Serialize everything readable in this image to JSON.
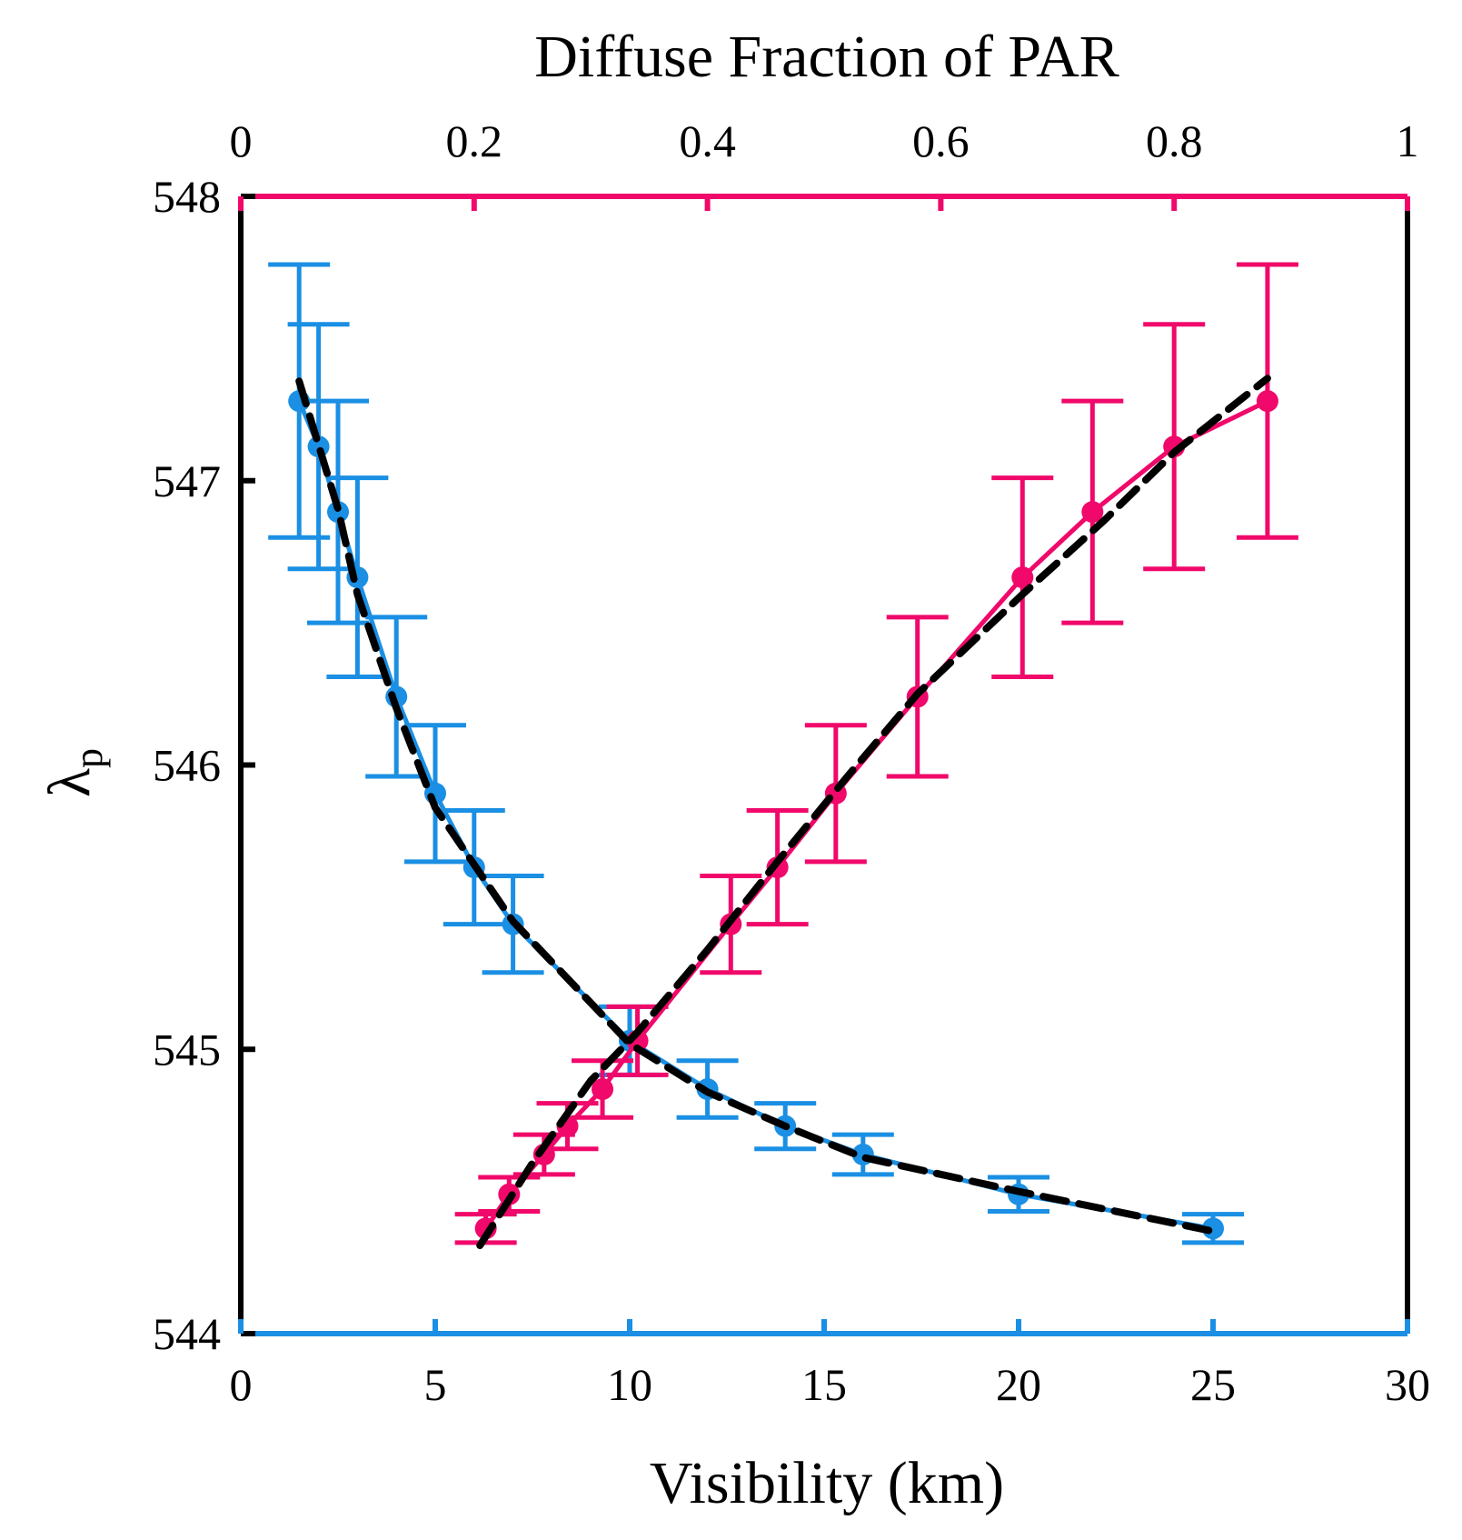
{
  "chart_data": {
    "type": "line",
    "title": "",
    "xlabel": "Visibility (km)",
    "x2label": "Diffuse Fraction of PAR",
    "ylabel": "λ",
    "ylabel_sub": "p",
    "xlim": [
      0,
      30
    ],
    "x2lim": [
      0,
      1
    ],
    "ylim": [
      544,
      548
    ],
    "xticks": [
      0,
      5,
      10,
      15,
      20,
      25,
      30
    ],
    "xtick_labels": [
      "0",
      "5",
      "10",
      "15",
      "20",
      "25",
      "30"
    ],
    "x2ticks": [
      0,
      0.2,
      0.4,
      0.6,
      0.8,
      1
    ],
    "x2tick_labels": [
      "0",
      "0.2",
      "0.4",
      "0.6",
      "0.8",
      "1"
    ],
    "yticks": [
      544,
      545,
      546,
      547,
      548
    ],
    "ytick_labels": [
      "544",
      "545",
      "546",
      "547",
      "548"
    ],
    "grid": false,
    "colors": {
      "visibility": "#1a8fe3",
      "diffuse": "#f0086a",
      "fit": "#000000",
      "axis": "#000000"
    },
    "series": [
      {
        "name": "Visibility",
        "axis": "bottom",
        "color": "#1a8fe3",
        "x": [
          1.5,
          2.0,
          2.5,
          3.0,
          4.0,
          5.0,
          6.0,
          7.0,
          10.0,
          12.0,
          14.0,
          16.0,
          20.0,
          25.0
        ],
        "y": [
          547.28,
          547.12,
          546.89,
          546.66,
          546.24,
          545.9,
          545.64,
          545.44,
          545.03,
          544.86,
          544.73,
          544.63,
          544.49,
          544.37
        ],
        "err": [
          0.48,
          0.43,
          0.39,
          0.35,
          0.28,
          0.24,
          0.2,
          0.17,
          0.12,
          0.1,
          0.08,
          0.07,
          0.06,
          0.05
        ]
      },
      {
        "name": "Diffuse Fraction of PAR",
        "axis": "top",
        "color": "#f0086a",
        "x": [
          0.21,
          0.23,
          0.26,
          0.28,
          0.31,
          0.34,
          0.42,
          0.46,
          0.51,
          0.58,
          0.67,
          0.73,
          0.8,
          0.88
        ],
        "y": [
          544.37,
          544.49,
          544.63,
          544.73,
          544.86,
          545.03,
          545.44,
          545.64,
          545.9,
          546.24,
          546.66,
          546.89,
          547.12,
          547.28
        ],
        "err": [
          0.05,
          0.06,
          0.07,
          0.08,
          0.1,
          0.12,
          0.17,
          0.2,
          0.24,
          0.28,
          0.35,
          0.39,
          0.43,
          0.48
        ]
      }
    ],
    "fits": [
      {
        "name": "visibility-fit",
        "axis": "bottom",
        "style": "dashed",
        "x": [
          1.5,
          2.5,
          3.0,
          4.0,
          5.0,
          6.0,
          7.0,
          10.0,
          12.0,
          14.0,
          16.0,
          20.0,
          25.0
        ],
        "y": [
          547.35,
          546.9,
          546.6,
          546.2,
          545.85,
          545.65,
          545.45,
          545.02,
          544.85,
          544.73,
          544.62,
          544.5,
          544.36
        ]
      },
      {
        "name": "diffuse-fit",
        "axis": "top",
        "style": "dashed",
        "x": [
          0.205,
          0.25,
          0.3,
          0.34,
          0.4,
          0.46,
          0.52,
          0.58,
          0.67,
          0.74,
          0.8,
          0.88
        ],
        "y": [
          544.31,
          544.6,
          544.89,
          545.06,
          545.35,
          545.66,
          545.96,
          546.25,
          546.6,
          546.86,
          547.1,
          547.36
        ]
      }
    ]
  }
}
